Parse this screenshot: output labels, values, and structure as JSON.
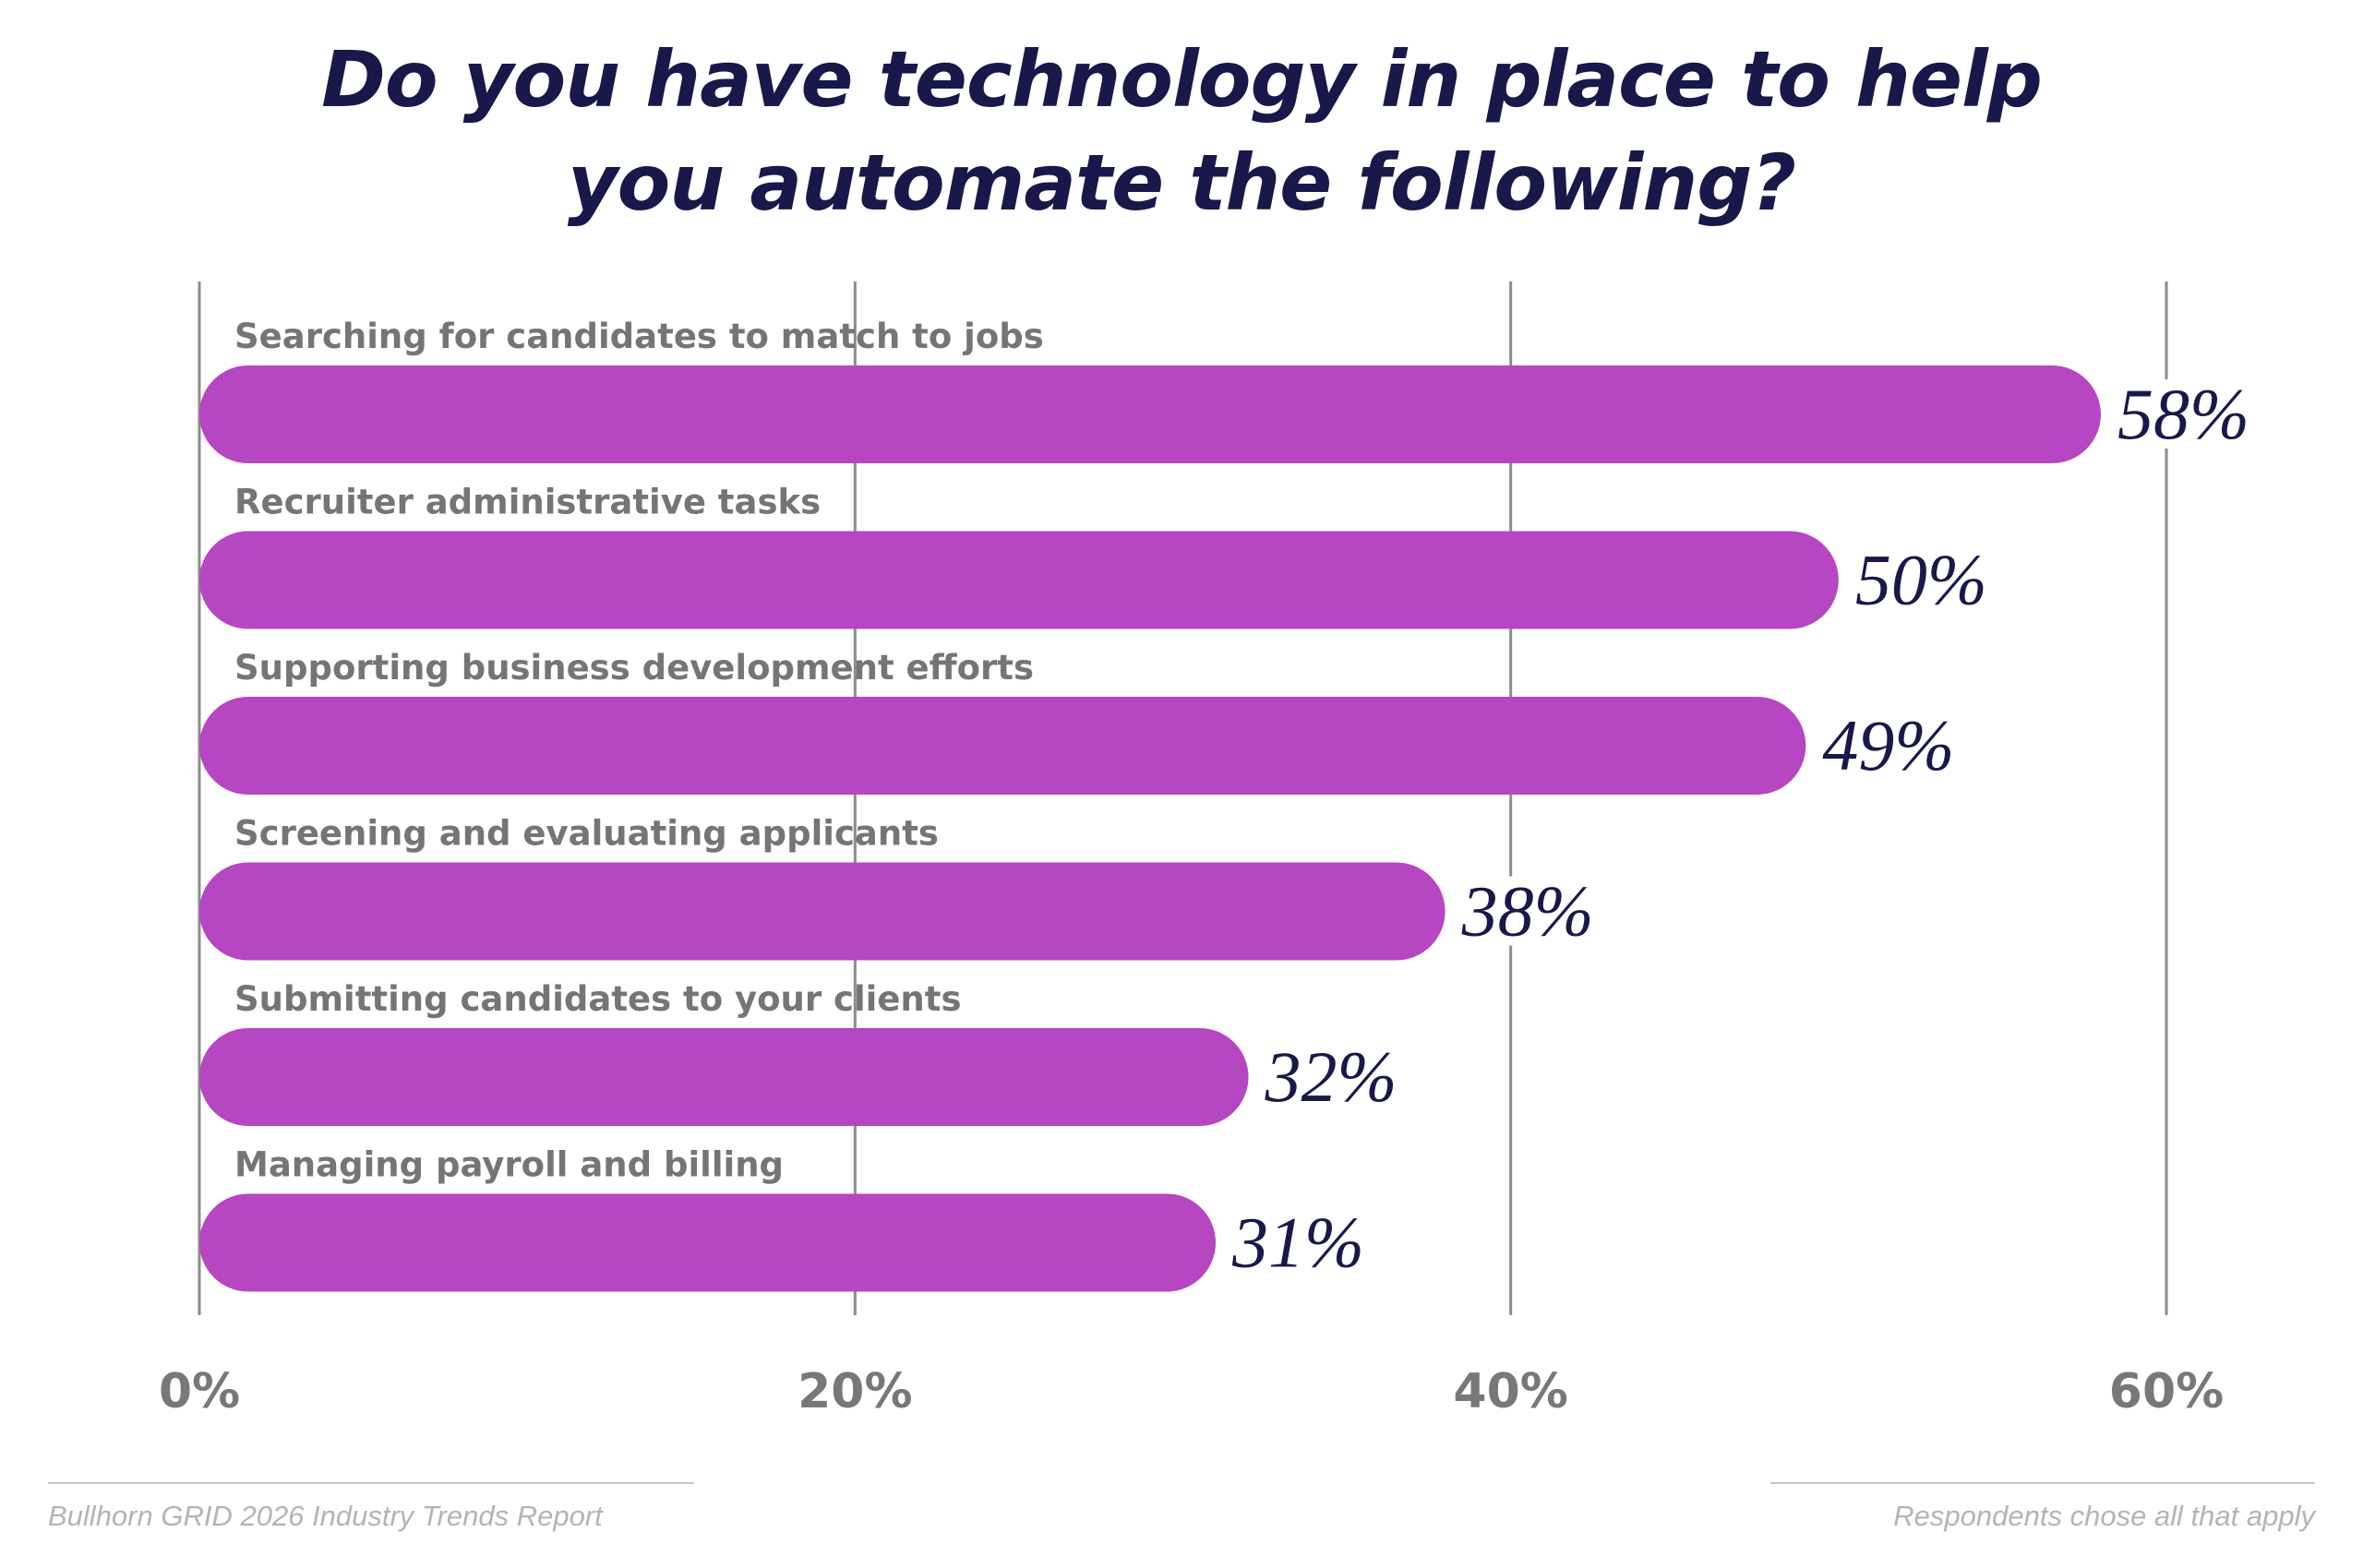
{
  "title_lines": [
    "Do you have technology in place to help",
    "you automate the following?"
  ],
  "chart_data": {
    "type": "bar",
    "orientation": "horizontal",
    "categories": [
      "Searching for candidates to match to jobs",
      "Recruiter administrative tasks",
      "Supporting business development efforts",
      "Screening and evaluating applicants",
      "Submitting candidates to your clients",
      "Managing payroll and billing"
    ],
    "values": [
      58,
      50,
      49,
      38,
      32,
      31
    ],
    "value_labels": [
      "58%",
      "50%",
      "49%",
      "38%",
      "32%",
      "31%"
    ],
    "xlim": [
      0,
      60
    ],
    "xticks": [
      0,
      20,
      40,
      60
    ],
    "xtick_labels": [
      "0%",
      "20%",
      "40%",
      "60%"
    ],
    "grid": true,
    "bar_color": "#b646c2",
    "label_color": "#757575",
    "value_color": "#18184a",
    "grid_color": "#8c8c8c"
  },
  "footer": {
    "source": "Bullhorn GRID 2026 Industry Trends Report",
    "note": "Respondents chose all that apply"
  }
}
